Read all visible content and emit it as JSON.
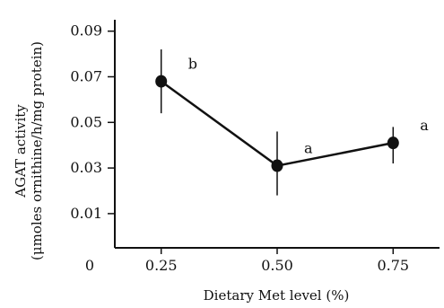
{
  "chart_data": {
    "type": "line",
    "title": "",
    "xlabel": "Dietary Met level (%)",
    "ylabel_lines": [
      "AGAT activity",
      "(μmoles ornithine/h/mg protein)"
    ],
    "x": [
      0.25,
      0.5,
      0.75
    ],
    "x_tick_labels": [
      "0.25",
      "0.50",
      "0.75"
    ],
    "y_ticks": [
      0.01,
      0.03,
      0.05,
      0.07,
      0.09
    ],
    "y_tick_labels": [
      "0.01",
      "0.03",
      "0.05",
      "0.07",
      "0.09"
    ],
    "origin_label": "0",
    "xlim": [
      0.15,
      0.85
    ],
    "ylim": [
      -0.005,
      0.095
    ],
    "grid": false,
    "series": [
      {
        "values": [
          0.068,
          0.031,
          0.041
        ],
        "error_low": [
          0.054,
          0.018,
          0.032
        ],
        "error_high": [
          0.082,
          0.046,
          0.048
        ],
        "significance_letters": [
          "b",
          "a",
          "a"
        ],
        "color": "#111111"
      }
    ]
  }
}
